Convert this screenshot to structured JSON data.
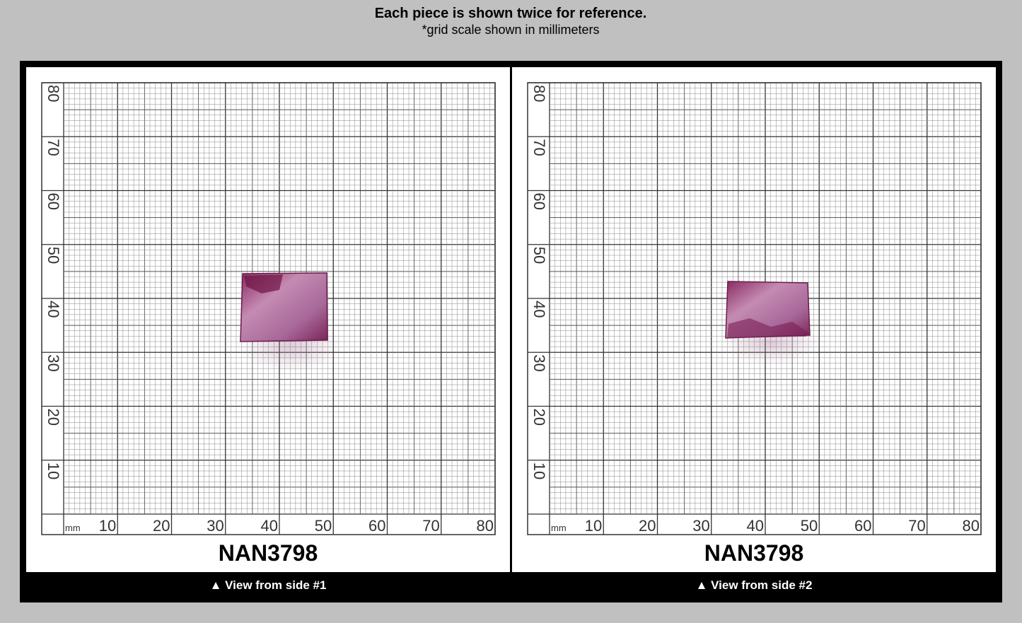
{
  "header": {
    "title": "Each piece is shown twice for reference.",
    "subtitle": "*grid scale shown in millimeters"
  },
  "panels": [
    {
      "label": "NAN3798",
      "caption": "▲ View from side #1"
    },
    {
      "label": "NAN3798",
      "caption": "▲ View from side #2"
    }
  ],
  "scale": {
    "unit": "mm",
    "ticks": [
      10,
      20,
      30,
      40,
      50,
      60,
      70,
      80
    ]
  }
}
